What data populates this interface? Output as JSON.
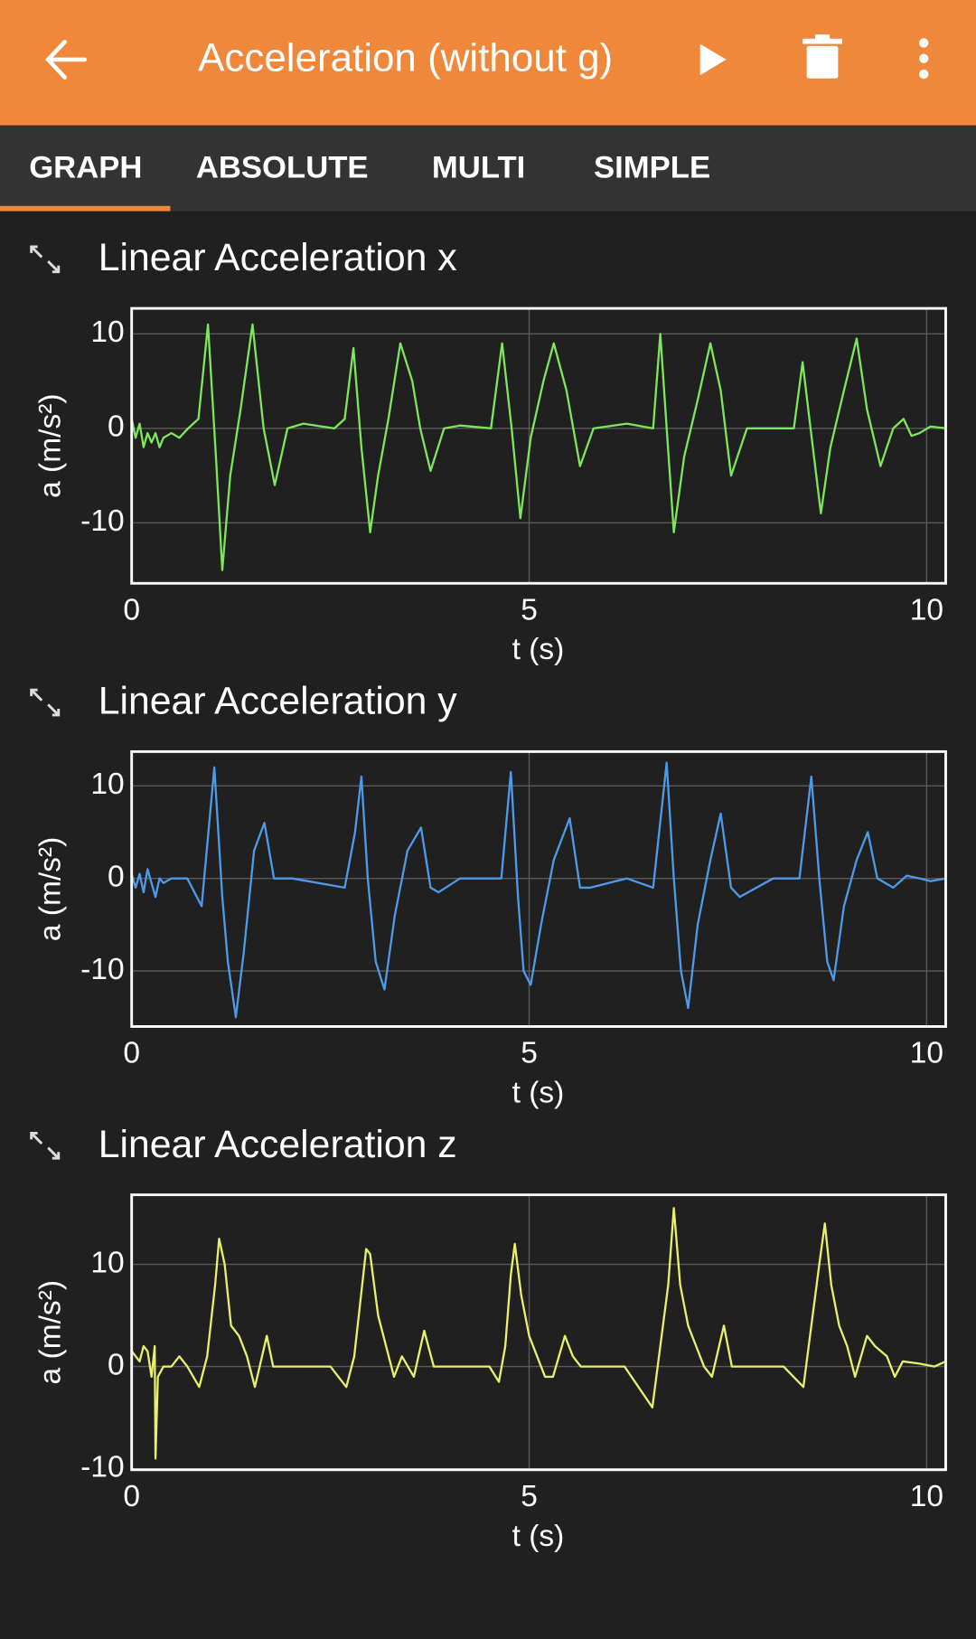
{
  "header": {
    "title": "Acceleration (without g)"
  },
  "tabs": [
    "GRAPH",
    "ABSOLUTE",
    "MULTI",
    "SIMPLE"
  ],
  "chart_data": [
    {
      "type": "line",
      "title": "Linear Acceleration x",
      "x_label": "t (s)",
      "y_label": "a (m/s²)",
      "color": "#7ee65a",
      "grid": true,
      "xlim": [
        0,
        10.24
      ],
      "xticks": [
        0,
        5,
        10
      ],
      "ylim": [
        -16.4,
        12.7
      ],
      "yticks": [
        -10,
        0,
        10
      ],
      "x": [
        0,
        0.05,
        0.1,
        0.15,
        0.2,
        0.25,
        0.3,
        0.35,
        0.4,
        0.5,
        0.6,
        0.71,
        0.84,
        0.96,
        1.06,
        1.14,
        1.24,
        1.37,
        1.52,
        1.66,
        1.8,
        1.96,
        2.16,
        2.55,
        2.68,
        2.79,
        2.89,
        3.0,
        3.1,
        3.23,
        3.38,
        3.53,
        3.63,
        3.76,
        3.93,
        4.13,
        4.52,
        4.66,
        4.78,
        4.89,
        5.02,
        5.18,
        5.31,
        5.47,
        5.64,
        5.81,
        6.23,
        6.56,
        6.65,
        6.73,
        6.82,
        6.95,
        7.12,
        7.28,
        7.41,
        7.54,
        7.74,
        8.07,
        8.33,
        8.44,
        8.54,
        8.67,
        8.79,
        8.96,
        9.12,
        9.25,
        9.42,
        9.58,
        9.71,
        9.81,
        9.91,
        10.05,
        10.24
      ],
      "values": [
        1,
        -1,
        0.5,
        -2,
        -0.5,
        -1.5,
        -0.5,
        -2,
        -1,
        -0.5,
        -1,
        0,
        1,
        11,
        -3,
        -15,
        -5,
        2,
        11,
        0,
        -6,
        0,
        0.5,
        0,
        1,
        8.5,
        -2,
        -11,
        -5,
        1,
        9,
        5,
        0,
        -4.5,
        0,
        0.3,
        0,
        9,
        0,
        -9.5,
        -1,
        5,
        9,
        4,
        -4,
        0,
        0.5,
        0,
        10,
        0,
        -11,
        -3,
        3,
        9,
        4,
        -5,
        0,
        0,
        0,
        7,
        0,
        -9,
        -2,
        4,
        9.5,
        2,
        -4,
        0,
        1,
        -0.8,
        -0.5,
        0.2,
        0
      ]
    },
    {
      "type": "line",
      "title": "Linear Acceleration y",
      "x_label": "t (s)",
      "y_label": "a (m/s²)",
      "color": "#4f9ae8",
      "grid": true,
      "xlim": [
        0,
        10.24
      ],
      "xticks": [
        0,
        5,
        10
      ],
      "ylim": [
        -16,
        13.7
      ],
      "yticks": [
        -10,
        0,
        10
      ],
      "x": [
        0,
        0.05,
        0.1,
        0.15,
        0.2,
        0.25,
        0.3,
        0.35,
        0.4,
        0.5,
        0.7,
        0.88,
        1.04,
        1.14,
        1.21,
        1.31,
        1.41,
        1.54,
        1.67,
        1.79,
        2.02,
        2.68,
        2.81,
        2.89,
        2.97,
        3.07,
        3.18,
        3.31,
        3.47,
        3.64,
        3.76,
        3.86,
        4.13,
        4.65,
        4.77,
        4.86,
        4.93,
        5.02,
        5.15,
        5.31,
        5.51,
        5.64,
        5.77,
        6.23,
        6.56,
        6.73,
        6.82,
        6.91,
        7.0,
        7.12,
        7.28,
        7.41,
        7.54,
        7.65,
        8.07,
        8.4,
        8.55,
        8.65,
        8.75,
        8.83,
        8.96,
        9.12,
        9.26,
        9.38,
        9.58,
        9.75,
        9.91,
        10.05,
        10.24
      ],
      "values": [
        0.5,
        -1,
        0.5,
        -1.5,
        1,
        -0.5,
        -2,
        0,
        -0.5,
        0,
        0,
        -3,
        12,
        -2,
        -9,
        -15,
        -8,
        3,
        6,
        0,
        0,
        -1,
        5,
        11,
        0,
        -9,
        -12,
        -4,
        3,
        5.5,
        -1,
        -1.5,
        0,
        0,
        11.5,
        -2,
        -10,
        -11.5,
        -5,
        2,
        6.5,
        -1,
        -1,
        0,
        -1,
        12.5,
        0,
        -10,
        -14,
        -5,
        2,
        7,
        -1,
        -2,
        0,
        0,
        11,
        0,
        -9,
        -11,
        -3,
        2,
        5,
        0,
        -1,
        0.3,
        0,
        -0.3,
        0
      ]
    },
    {
      "type": "line",
      "title": "Linear Acceleration z",
      "x_label": "t (s)",
      "y_label": "a (m/s²)",
      "color": "#e9ee6c",
      "grid": true,
      "xlim": [
        0,
        10.24
      ],
      "xticks": [
        0,
        5,
        10
      ],
      "ylim": [
        -10.1,
        16.8
      ],
      "yticks": [
        -10,
        0,
        10
      ],
      "x": [
        0,
        0.1,
        0.15,
        0.2,
        0.25,
        0.29,
        0.3,
        0.33,
        0.4,
        0.5,
        0.6,
        0.7,
        0.85,
        0.95,
        1.05,
        1.1,
        1.17,
        1.25,
        1.35,
        1.45,
        1.55,
        1.7,
        1.78,
        1.9,
        2.5,
        2.7,
        2.8,
        2.9,
        2.95,
        3.0,
        3.1,
        3.2,
        3.3,
        3.4,
        3.55,
        3.68,
        3.8,
        4.0,
        4.5,
        4.62,
        4.7,
        4.77,
        4.82,
        4.9,
        5.0,
        5.1,
        5.2,
        5.3,
        5.45,
        5.55,
        5.65,
        6.2,
        6.55,
        6.65,
        6.75,
        6.82,
        6.9,
        7.0,
        7.1,
        7.2,
        7.3,
        7.45,
        7.55,
        7.7,
        8.2,
        8.45,
        8.55,
        8.65,
        8.72,
        8.8,
        8.9,
        9.0,
        9.1,
        9.25,
        9.35,
        9.5,
        9.6,
        9.7,
        9.9,
        10.1,
        10.24
      ],
      "values": [
        1.5,
        0.5,
        2,
        1.5,
        -1,
        2,
        -9,
        -1,
        0,
        0,
        1,
        0,
        -2,
        1,
        8,
        12.5,
        10,
        4,
        3,
        1,
        -2,
        3,
        0,
        0,
        0,
        -2,
        1,
        8,
        11.5,
        11,
        5,
        2,
        -1,
        1,
        -1,
        3.5,
        0,
        0,
        0,
        -1.5,
        2,
        9,
        12,
        7,
        3,
        1,
        -1,
        -1,
        3,
        1,
        0,
        0,
        -4,
        2,
        8,
        15.5,
        8,
        4,
        2,
        0,
        -1,
        4,
        0,
        0,
        0,
        -2,
        4,
        10,
        14,
        8,
        4,
        2,
        -1,
        3,
        2,
        1,
        -1,
        0.5,
        0.3,
        0,
        0.5
      ]
    }
  ]
}
